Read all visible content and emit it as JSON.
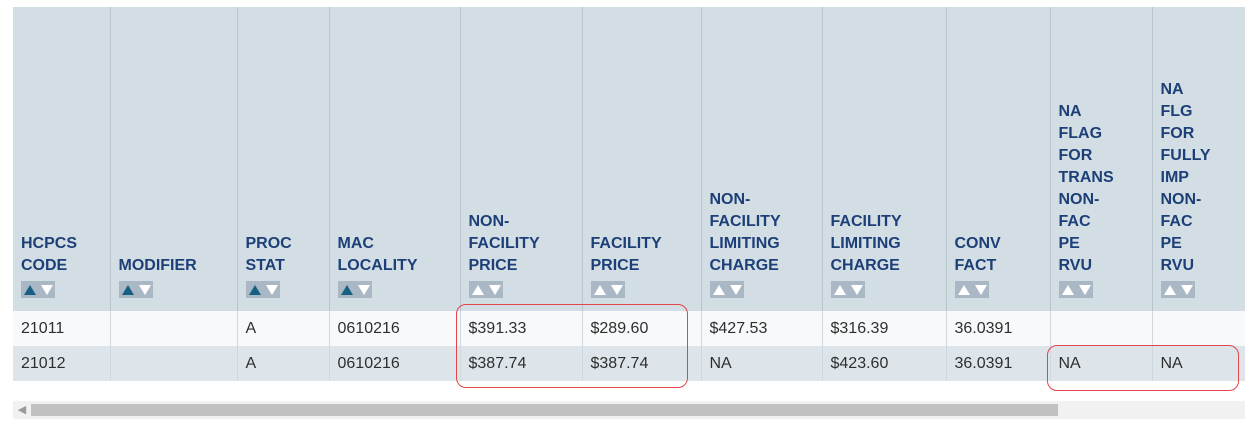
{
  "table": {
    "columns": [
      {
        "label": "HCPCS\nCODE",
        "sort_up_active": true
      },
      {
        "label": "MODIFIER",
        "sort_up_active": true
      },
      {
        "label": "PROC\nSTAT",
        "sort_up_active": true
      },
      {
        "label": "MAC\nLOCALITY",
        "sort_up_active": true
      },
      {
        "label": "NON-\nFACILITY\nPRICE",
        "sort_up_active": false
      },
      {
        "label": "FACILITY\nPRICE",
        "sort_up_active": false
      },
      {
        "label": "NON-\nFACILITY\nLIMITING\nCHARGE",
        "sort_up_active": false
      },
      {
        "label": "FACILITY\nLIMITING\nCHARGE",
        "sort_up_active": false
      },
      {
        "label": "CONV\nFACT",
        "sort_up_active": false
      },
      {
        "label": "NA\nFLAG\nFOR\nTRANS\nNON-\nFAC\nPE\nRVU",
        "sort_up_active": false
      },
      {
        "label": "NA\nFLG\nFOR\nFULLY\nIMP\nNON-\nFAC\nPE\nRVU",
        "sort_up_active": false
      }
    ],
    "rows": [
      [
        "21011",
        "",
        "A",
        "0610216",
        "$391.33",
        "$289.60",
        "$427.53",
        "$316.39",
        "36.0391",
        "",
        ""
      ],
      [
        "21012",
        "",
        "A",
        "0610216",
        "$387.74",
        "$387.74",
        "NA",
        "$423.60",
        "36.0391",
        "NA",
        "NA"
      ]
    ]
  },
  "scrollbar": {
    "left_arrow_icon": "chevron-left-icon"
  },
  "colors": {
    "header_bg": "#d3dde4",
    "header_text": "#1d3f78",
    "highlight": "#e0464a",
    "active_sort": "#176083"
  }
}
